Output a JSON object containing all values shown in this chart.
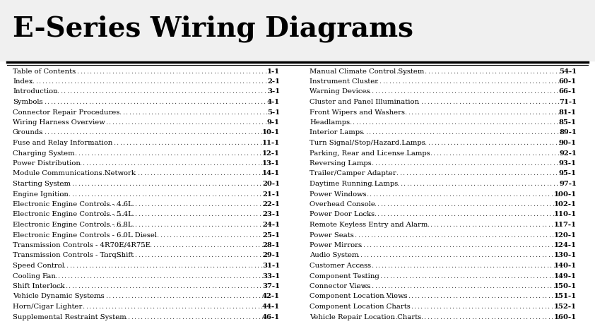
{
  "title": "E-Series Wiring Diagrams",
  "bg_color": "#ffffff",
  "title_color": "#000000",
  "text_color": "#000000",
  "left_entries": [
    [
      "Table of Contents",
      "1-1"
    ],
    [
      "Index",
      "2-1"
    ],
    [
      "Introduction",
      "3-1"
    ],
    [
      "Symbols",
      "4-1"
    ],
    [
      "Connector Repair Procedures",
      "5-1"
    ],
    [
      "Wiring Harness Overview",
      "9-1"
    ],
    [
      "Grounds",
      "10-1"
    ],
    [
      "Fuse and Relay Information",
      "11-1"
    ],
    [
      "Charging System",
      "12-1"
    ],
    [
      "Power Distribution",
      "13-1"
    ],
    [
      "Module Communications Network",
      "14-1"
    ],
    [
      "Starting System",
      "20-1"
    ],
    [
      "Engine Ignition",
      "21-1"
    ],
    [
      "Electronic Engine Controls - 4.6L",
      "22-1"
    ],
    [
      "Electronic Engine Controls - 5.4L",
      "23-1"
    ],
    [
      "Electronic Engine Controls - 6.8L",
      "24-1"
    ],
    [
      "Electronic Engine Controls - 6.0L Diesel",
      "25-1"
    ],
    [
      "Transmission Controls - 4R70E/4R75E",
      "28-1"
    ],
    [
      "Transmission Controls - TorqShift",
      "29-1"
    ],
    [
      "Speed Control",
      "31-1"
    ],
    [
      "Cooling Fan",
      "33-1"
    ],
    [
      "Shift Interlock",
      "37-1"
    ],
    [
      "Vehicle Dynamic Systems",
      "42-1"
    ],
    [
      "Horn/Cigar Lighter",
      "44-1"
    ],
    [
      "Supplemental Restraint System",
      "46-1"
    ]
  ],
  "right_entries": [
    [
      "Manual Climate Control System",
      "54-1"
    ],
    [
      "Instrument Cluster",
      "60-1"
    ],
    [
      "Warning Devices",
      "66-1"
    ],
    [
      "Cluster and Panel Illumination",
      "71-1"
    ],
    [
      "Front Wipers and Washers",
      "81-1"
    ],
    [
      "Headlamps",
      "85-1"
    ],
    [
      "Interior Lamps",
      "89-1"
    ],
    [
      "Turn Signal/Stop/Hazard Lamps",
      "90-1"
    ],
    [
      "Parking, Rear and License Lamps",
      "92-1"
    ],
    [
      "Reversing Lamps",
      "93-1"
    ],
    [
      "Trailer/Camper Adapter",
      "95-1"
    ],
    [
      "Daytime Running Lamps",
      "97-1"
    ],
    [
      "Power Windows",
      "100-1"
    ],
    [
      "Overhead Console",
      "102-1"
    ],
    [
      "Power Door Locks",
      "110-1"
    ],
    [
      "Remote Keyless Entry and Alarm",
      "117-1"
    ],
    [
      "Power Seats",
      "120-1"
    ],
    [
      "Power Mirrors",
      "124-1"
    ],
    [
      "Audio System",
      "130-1"
    ],
    [
      "Customer Access",
      "140-1"
    ],
    [
      "Component Testing",
      "149-1"
    ],
    [
      "Connector Views",
      "150-1"
    ],
    [
      "Component Location Views",
      "151-1"
    ],
    [
      "Component Location Charts",
      "152-1"
    ],
    [
      "Vehicle Repair Location Charts",
      "160-1"
    ]
  ]
}
